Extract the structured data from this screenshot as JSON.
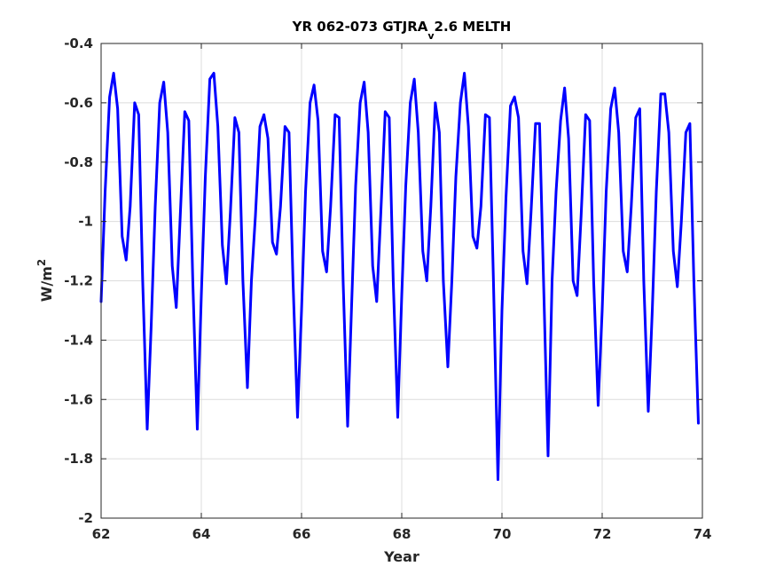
{
  "chart_data": {
    "type": "line",
    "title_main": "YR 062-073 GTJRA",
    "title_sub": "v",
    "title_tail": "2.6 MELTH",
    "xlabel": "Year",
    "ylabel_base": "W/m",
    "ylabel_sup": "2",
    "xlim": [
      62,
      74
    ],
    "ylim": [
      -2,
      -0.4
    ],
    "xticks": [
      62,
      64,
      66,
      68,
      70,
      72,
      74
    ],
    "xtick_labels": [
      "62",
      "64",
      "66",
      "68",
      "70",
      "72",
      "74"
    ],
    "yticks": [
      -2,
      -1.8,
      -1.6,
      -1.4,
      -1.2,
      -1,
      -0.8,
      -0.6,
      -0.4
    ],
    "ytick_labels": [
      "-2",
      "-1.8",
      "-1.6",
      "-1.4",
      "-1.2",
      "-1",
      "-0.8",
      "-0.6",
      "-0.4"
    ],
    "grid": true,
    "line_color": "#0000ff",
    "series": [
      {
        "x": [
          62.0,
          62.08,
          62.17,
          62.25,
          62.33,
          62.42,
          62.5,
          62.58,
          62.67,
          62.75,
          62.83,
          62.92,
          63.0,
          63.08,
          63.17,
          63.25,
          63.33,
          63.42,
          63.5,
          63.58,
          63.67,
          63.75,
          63.83,
          63.92,
          64.0,
          64.08,
          64.17,
          64.25,
          64.33,
          64.42,
          64.5,
          64.58,
          64.67,
          64.75,
          64.83,
          64.92,
          65.0,
          65.08,
          65.17,
          65.25,
          65.33,
          65.42,
          65.5,
          65.58,
          65.67,
          65.75,
          65.83,
          65.92,
          66.0,
          66.08,
          66.17,
          66.25,
          66.33,
          66.42,
          66.5,
          66.58,
          66.67,
          66.75,
          66.83,
          66.92,
          67.0,
          67.08,
          67.17,
          67.25,
          67.33,
          67.42,
          67.5,
          67.58,
          67.67,
          67.75,
          67.83,
          67.92,
          68.0,
          68.08,
          68.17,
          68.25,
          68.33,
          68.42,
          68.5,
          68.58,
          68.67,
          68.75,
          68.83,
          68.92,
          69.0,
          69.08,
          69.17,
          69.25,
          69.33,
          69.42,
          69.5,
          69.58,
          69.67,
          69.75,
          69.83,
          69.92,
          70.0,
          70.08,
          70.17,
          70.25,
          70.33,
          70.42,
          70.5,
          70.58,
          70.67,
          70.75,
          70.83,
          70.92,
          71.0,
          71.08,
          71.17,
          71.25,
          71.33,
          71.42,
          71.5,
          71.58,
          71.67,
          71.75,
          71.83,
          71.92,
          72.0,
          72.08,
          72.17,
          72.25,
          72.33,
          72.42,
          72.5,
          72.58,
          72.67,
          72.75,
          72.83,
          72.92,
          73.0,
          73.08,
          73.17,
          73.25,
          73.33,
          73.42,
          73.5,
          73.58,
          73.67,
          73.75,
          73.83,
          73.92
        ],
        "y": [
          -1.27,
          -0.9,
          -0.58,
          -0.5,
          -0.62,
          -1.05,
          -1.13,
          -0.95,
          -0.6,
          -0.64,
          -1.2,
          -1.7,
          -1.35,
          -0.95,
          -0.6,
          -0.53,
          -0.7,
          -1.15,
          -1.29,
          -0.98,
          -0.63,
          -0.66,
          -1.2,
          -1.7,
          -1.25,
          -0.85,
          -0.52,
          -0.5,
          -0.68,
          -1.08,
          -1.21,
          -0.97,
          -0.65,
          -0.7,
          -1.2,
          -1.56,
          -1.2,
          -0.98,
          -0.68,
          -0.64,
          -0.72,
          -1.07,
          -1.11,
          -0.95,
          -0.68,
          -0.7,
          -1.2,
          -1.66,
          -1.3,
          -0.9,
          -0.6,
          -0.54,
          -0.66,
          -1.1,
          -1.17,
          -0.95,
          -0.64,
          -0.65,
          -1.2,
          -1.69,
          -1.28,
          -0.88,
          -0.6,
          -0.53,
          -0.7,
          -1.15,
          -1.27,
          -0.98,
          -0.63,
          -0.65,
          -1.2,
          -1.66,
          -1.25,
          -0.88,
          -0.6,
          -0.52,
          -0.7,
          -1.1,
          -1.2,
          -0.95,
          -0.6,
          -0.7,
          -1.2,
          -1.49,
          -1.2,
          -0.85,
          -0.6,
          -0.5,
          -0.68,
          -1.05,
          -1.09,
          -0.95,
          -0.64,
          -0.65,
          -1.2,
          -1.87,
          -1.3,
          -0.92,
          -0.61,
          -0.58,
          -0.65,
          -1.1,
          -1.21,
          -0.97,
          -0.67,
          -0.67,
          -1.2,
          -1.79,
          -1.2,
          -0.9,
          -0.66,
          -0.55,
          -0.72,
          -1.2,
          -1.25,
          -0.98,
          -0.64,
          -0.66,
          -1.2,
          -1.62,
          -1.3,
          -0.9,
          -0.62,
          -0.55,
          -0.7,
          -1.1,
          -1.17,
          -0.95,
          -0.65,
          -0.62,
          -1.2,
          -1.64,
          -1.3,
          -0.9,
          -0.57,
          -0.57,
          -0.7,
          -1.1,
          -1.22,
          -1.0,
          -0.7,
          -0.67,
          -1.2,
          -1.68
        ]
      }
    ]
  }
}
